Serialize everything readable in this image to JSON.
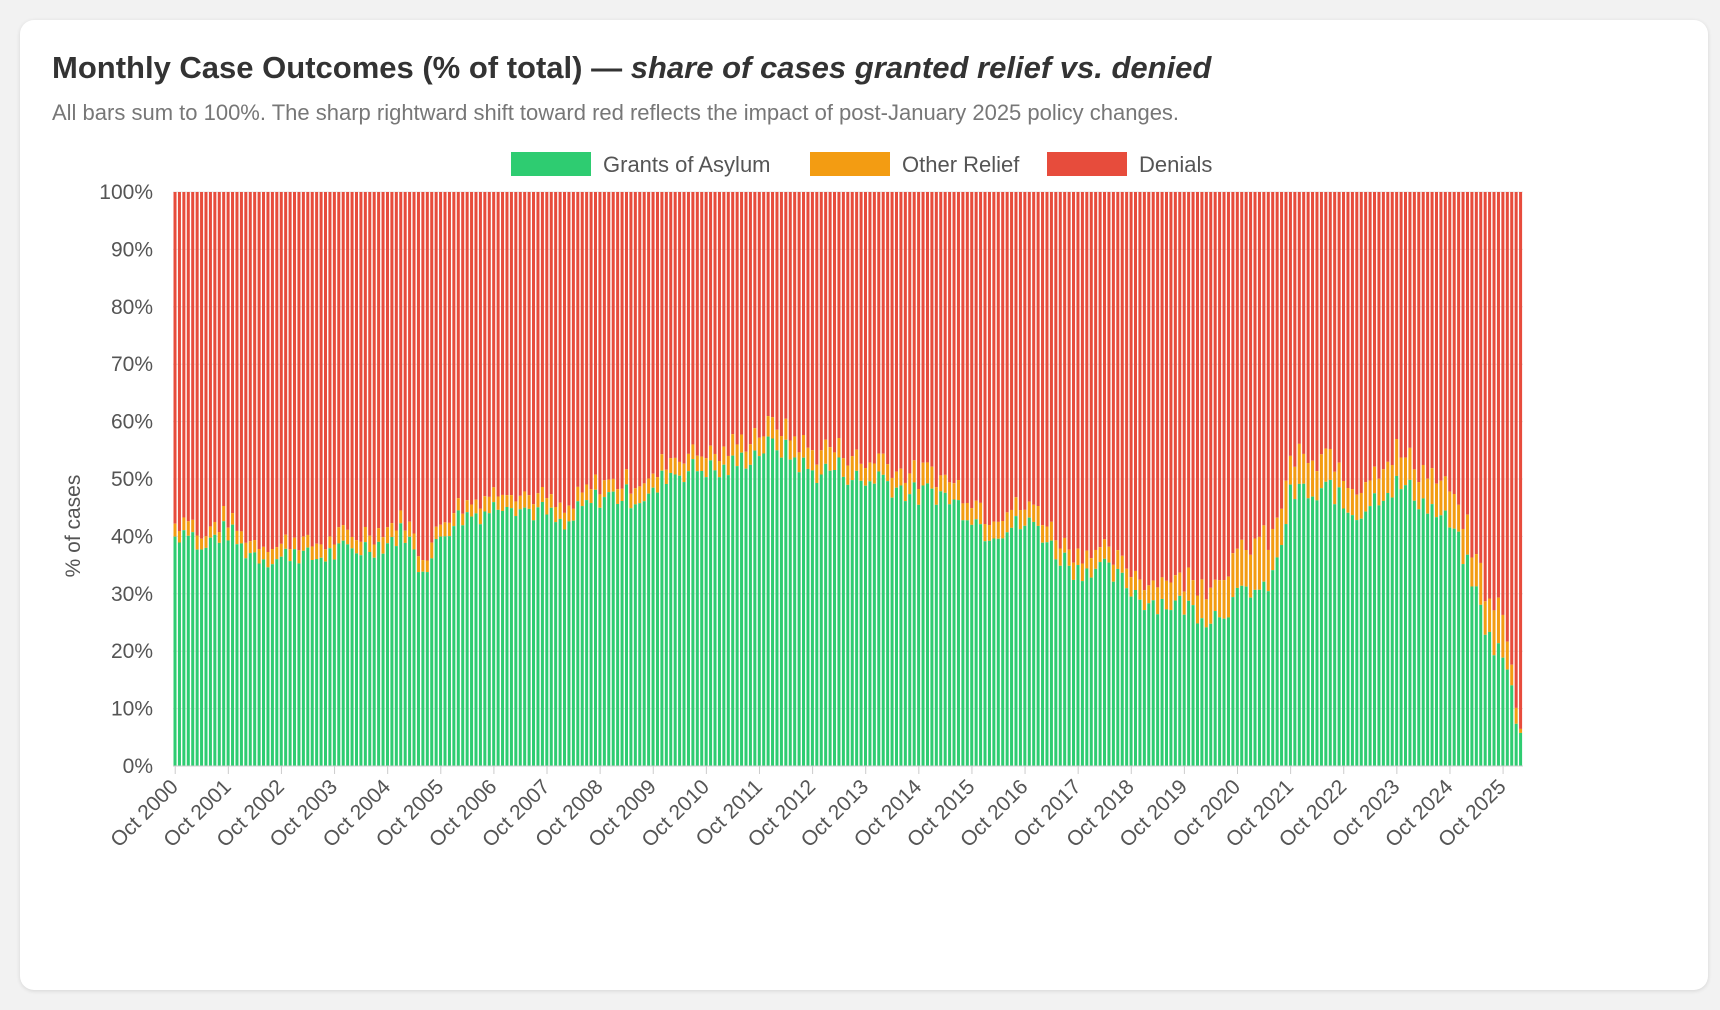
{
  "title": {
    "main": "Monthly Case Outcomes (% of total) —",
    "emphasis": "share of cases granted relief vs. denied"
  },
  "subtitle": "All bars sum to 100%. The sharp rightward shift toward red reflects the impact of post-January 2025 policy changes.",
  "colors": {
    "grants": "#2ecc71",
    "other": "#f39c12",
    "denials": "#e74c3c",
    "background": "#f2f2f2",
    "card": "#ffffff",
    "text": "#555555",
    "gridline": "#e6e6e6"
  },
  "chart_data": {
    "type": "bar",
    "stacked": true,
    "ylabel": "% of cases",
    "ylim": [
      0,
      100
    ],
    "y_ticks": [
      "0%",
      "10%",
      "20%",
      "30%",
      "40%",
      "50%",
      "60%",
      "70%",
      "80%",
      "90%",
      "100%"
    ],
    "x_ticks": [
      "Oct 2000",
      "Oct 2001",
      "Oct 2002",
      "Oct 2003",
      "Oct 2004",
      "Oct 2005",
      "Oct 2006",
      "Oct 2007",
      "Oct 2008",
      "Oct 2009",
      "Oct 2010",
      "Oct 2011",
      "Oct 2012",
      "Oct 2013",
      "Oct 2014",
      "Oct 2015",
      "Oct 2016",
      "Oct 2017",
      "Oct 2018",
      "Oct 2019",
      "Oct 2020",
      "Oct 2021",
      "Oct 2022",
      "Oct 2023",
      "Oct 2024",
      "Oct 2025"
    ],
    "legend_position": "top-center",
    "granularity": "month",
    "x_start": "Oct 2000",
    "x_end": "Feb 2026",
    "series": [
      {
        "name": "Grants of Asylum",
        "color": "#2ecc71",
        "anchors": [
          [
            "Oct 2000",
            40
          ],
          [
            "Jan 2001",
            42
          ],
          [
            "Apr 2001",
            37
          ],
          [
            "Jul 2001",
            40
          ],
          [
            "Oct 2001",
            41
          ],
          [
            "Jan 2002",
            38
          ],
          [
            "Apr 2002",
            37
          ],
          [
            "Oct 2002",
            36
          ],
          [
            "Jan 2003",
            38
          ],
          [
            "Apr 2003",
            36
          ],
          [
            "Oct 2003",
            37
          ],
          [
            "Apr 2004",
            38
          ],
          [
            "Oct 2004",
            39
          ],
          [
            "Feb 2005",
            41
          ],
          [
            "May 2005",
            35
          ],
          [
            "Aug 2005",
            36
          ],
          [
            "Oct 2005",
            40
          ],
          [
            "Jan 2006",
            43
          ],
          [
            "Oct 2006",
            45
          ],
          [
            "Jan 2007",
            47
          ],
          [
            "Apr 2007",
            45
          ],
          [
            "Oct 2007",
            44
          ],
          [
            "Feb 2008",
            41
          ],
          [
            "May 2008",
            44
          ],
          [
            "Oct 2008",
            47
          ],
          [
            "Apr 2009",
            47
          ],
          [
            "Oct 2009",
            47
          ],
          [
            "Jan 2010",
            51
          ],
          [
            "Oct 2010",
            52
          ],
          [
            "Jan 2011",
            51
          ],
          [
            "Oct 2011",
            55
          ],
          [
            "Feb 2012",
            56
          ],
          [
            "Oct 2012",
            51
          ],
          [
            "Apr 2013",
            52
          ],
          [
            "Oct 2013",
            49
          ],
          [
            "Jan 2014",
            51
          ],
          [
            "Apr 2014",
            49
          ],
          [
            "Oct 2014",
            47
          ],
          [
            "Jan 2015",
            48
          ],
          [
            "Apr 2015",
            47
          ],
          [
            "Oct 2015",
            44
          ],
          [
            "Jan 2016",
            41
          ],
          [
            "Oct 2016",
            42
          ],
          [
            "Jan 2017",
            42
          ],
          [
            "Apr 2017",
            38
          ],
          [
            "Jul 2017",
            36
          ],
          [
            "Oct 2017",
            34
          ],
          [
            "Jan 2018",
            35
          ],
          [
            "Apr 2018",
            34
          ],
          [
            "Oct 2018",
            31
          ],
          [
            "Jan 2019",
            29
          ],
          [
            "Oct 2019",
            28
          ],
          [
            "Jan 2020",
            27
          ],
          [
            "Apr 2020",
            26
          ],
          [
            "Oct 2020",
            29
          ],
          [
            "Jan 2021",
            31
          ],
          [
            "Apr 2021",
            30
          ],
          [
            "Jul 2021",
            35
          ],
          [
            "Oct 2021",
            47
          ],
          [
            "Jan 2022",
            48
          ],
          [
            "Apr 2022",
            46
          ],
          [
            "Jul 2022",
            49
          ],
          [
            "Oct 2022",
            45
          ],
          [
            "Jan 2023",
            44
          ],
          [
            "Apr 2023",
            46
          ],
          [
            "Jul 2023",
            48
          ],
          [
            "Oct 2023",
            49
          ],
          [
            "Jan 2024",
            48
          ],
          [
            "Apr 2024",
            46
          ],
          [
            "Oct 2024",
            42
          ],
          [
            "Jan 2025",
            37
          ],
          [
            "Apr 2025",
            30
          ],
          [
            "Jul 2025",
            22
          ],
          [
            "Oct 2025",
            19
          ],
          [
            "Dec 2025",
            13
          ],
          [
            "Feb 2026",
            5
          ]
        ]
      },
      {
        "name": "Other Relief",
        "color": "#f39c12",
        "anchors": [
          [
            "Oct 2000",
            1.8
          ],
          [
            "Oct 2004",
            2
          ],
          [
            "Oct 2008",
            2
          ],
          [
            "Oct 2012",
            3
          ],
          [
            "Oct 2016",
            2.5
          ],
          [
            "Oct 2017",
            2.5
          ],
          [
            "Oct 2018",
            2.5
          ],
          [
            "Oct 2019",
            4
          ],
          [
            "Oct 2020",
            6
          ],
          [
            "Apr 2021",
            7
          ],
          [
            "Oct 2021",
            5
          ],
          [
            "Oct 2022",
            4
          ],
          [
            "Oct 2023",
            4.5
          ],
          [
            "Oct 2024",
            4.5
          ],
          [
            "Apr 2025",
            5
          ],
          [
            "Oct 2025",
            6
          ],
          [
            "Feb 2026",
            0.7
          ]
        ]
      },
      {
        "name": "Denials",
        "color": "#e74c3c",
        "rule": "100 minus the other two series"
      }
    ]
  }
}
